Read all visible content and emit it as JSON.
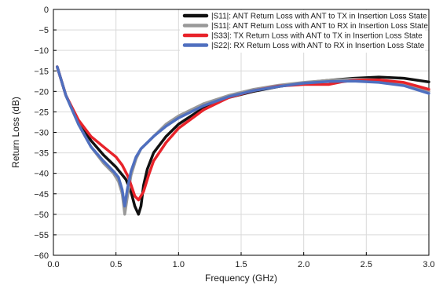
{
  "chart_data": {
    "type": "line",
    "title": "",
    "xlabel": "Frequency (GHz)",
    "ylabel": "Return Loss (dB)",
    "xlim": [
      0,
      3.0
    ],
    "ylim": [
      -60,
      0
    ],
    "x_ticks": [
      "0.0",
      "0.5",
      "1.0",
      "1.5",
      "2.0",
      "2.5",
      "3.0"
    ],
    "x_tick_values": [
      0,
      0.5,
      1.0,
      1.5,
      2.0,
      2.5,
      3.0
    ],
    "y_ticks": [
      "0",
      "−5",
      "−10",
      "−15",
      "−20",
      "−25",
      "−30",
      "−35",
      "−40",
      "−45",
      "−50",
      "−55",
      "−60"
    ],
    "y_tick_values": [
      0,
      -5,
      -10,
      -15,
      -20,
      -25,
      -30,
      -35,
      -40,
      -45,
      -50,
      -55,
      -60
    ],
    "grid": true,
    "legend_position": "top-right",
    "series": [
      {
        "name": "|S11|: ANT Return Loss with ANT to TX in Insertion Loss State",
        "color": "#111111",
        "points": [
          [
            0.03,
            -14
          ],
          [
            0.05,
            -16
          ],
          [
            0.1,
            -21
          ],
          [
            0.2,
            -27.5
          ],
          [
            0.3,
            -32
          ],
          [
            0.4,
            -35.5
          ],
          [
            0.5,
            -38.5
          ],
          [
            0.58,
            -41.5
          ],
          [
            0.62,
            -44.5
          ],
          [
            0.65,
            -48
          ],
          [
            0.68,
            -50
          ],
          [
            0.7,
            -48
          ],
          [
            0.72,
            -43
          ],
          [
            0.75,
            -39
          ],
          [
            0.8,
            -35
          ],
          [
            0.9,
            -31
          ],
          [
            1.0,
            -28
          ],
          [
            1.2,
            -24
          ],
          [
            1.4,
            -21.5
          ],
          [
            1.6,
            -20
          ],
          [
            1.8,
            -18.8
          ],
          [
            2.0,
            -17.9
          ],
          [
            2.2,
            -17.3
          ],
          [
            2.4,
            -16.8
          ],
          [
            2.6,
            -16.5
          ],
          [
            2.8,
            -16.8
          ],
          [
            3.0,
            -17.7
          ]
        ]
      },
      {
        "name": "|S11|: ANT Return Loss with ANT to RX in Insertion Loss State",
        "color": "#999999",
        "points": [
          [
            0.03,
            -14
          ],
          [
            0.05,
            -16
          ],
          [
            0.1,
            -21
          ],
          [
            0.2,
            -28
          ],
          [
            0.3,
            -33.5
          ],
          [
            0.4,
            -37.5
          ],
          [
            0.48,
            -40
          ],
          [
            0.52,
            -42
          ],
          [
            0.55,
            -45
          ],
          [
            0.57,
            -50
          ],
          [
            0.59,
            -46
          ],
          [
            0.62,
            -40.5
          ],
          [
            0.66,
            -36.5
          ],
          [
            0.7,
            -34
          ],
          [
            0.8,
            -31
          ],
          [
            0.9,
            -28
          ],
          [
            1.0,
            -26
          ],
          [
            1.2,
            -23
          ],
          [
            1.4,
            -21
          ],
          [
            1.6,
            -19.5
          ],
          [
            1.8,
            -18.5
          ],
          [
            2.0,
            -17.8
          ],
          [
            2.2,
            -17.3
          ],
          [
            2.4,
            -17
          ],
          [
            2.6,
            -17.2
          ],
          [
            2.8,
            -18
          ],
          [
            3.0,
            -20
          ]
        ]
      },
      {
        "name": "|S33|: TX Return Loss with ANT to TX in Insertion Loss State",
        "color": "#e8232a",
        "points": [
          [
            0.03,
            -14
          ],
          [
            0.05,
            -16
          ],
          [
            0.1,
            -21
          ],
          [
            0.2,
            -27
          ],
          [
            0.3,
            -31
          ],
          [
            0.4,
            -33.5
          ],
          [
            0.5,
            -36
          ],
          [
            0.55,
            -38
          ],
          [
            0.6,
            -41
          ],
          [
            0.65,
            -45.5
          ],
          [
            0.68,
            -46.5
          ],
          [
            0.72,
            -44.5
          ],
          [
            0.76,
            -40.5
          ],
          [
            0.8,
            -37
          ],
          [
            0.9,
            -32.5
          ],
          [
            1.0,
            -29
          ],
          [
            1.2,
            -24.5
          ],
          [
            1.4,
            -21.5
          ],
          [
            1.6,
            -19.8
          ],
          [
            1.8,
            -18.7
          ],
          [
            2.0,
            -18.3
          ],
          [
            2.2,
            -18.3
          ],
          [
            2.3,
            -17.7
          ],
          [
            2.4,
            -17.3
          ],
          [
            2.6,
            -17.2
          ],
          [
            2.8,
            -17.8
          ],
          [
            3.0,
            -19.5
          ]
        ]
      },
      {
        "name": "|S22|: RX Return Loss with ANT to RX in Insertion Loss State",
        "color": "#4f6fbf",
        "points": [
          [
            0.03,
            -14
          ],
          [
            0.05,
            -16
          ],
          [
            0.1,
            -21
          ],
          [
            0.2,
            -28
          ],
          [
            0.3,
            -33.5
          ],
          [
            0.4,
            -37
          ],
          [
            0.48,
            -39.5
          ],
          [
            0.52,
            -41
          ],
          [
            0.55,
            -44
          ],
          [
            0.57,
            -48
          ],
          [
            0.59,
            -44
          ],
          [
            0.62,
            -39.5
          ],
          [
            0.66,
            -36
          ],
          [
            0.7,
            -34
          ],
          [
            0.8,
            -31
          ],
          [
            0.9,
            -28.5
          ],
          [
            1.0,
            -26.5
          ],
          [
            1.2,
            -23.5
          ],
          [
            1.4,
            -21.3
          ],
          [
            1.6,
            -19.8
          ],
          [
            1.8,
            -18.8
          ],
          [
            2.0,
            -18
          ],
          [
            2.2,
            -17.6
          ],
          [
            2.4,
            -17.5
          ],
          [
            2.6,
            -17.8
          ],
          [
            2.8,
            -18.6
          ],
          [
            3.0,
            -20.5
          ]
        ]
      }
    ]
  }
}
